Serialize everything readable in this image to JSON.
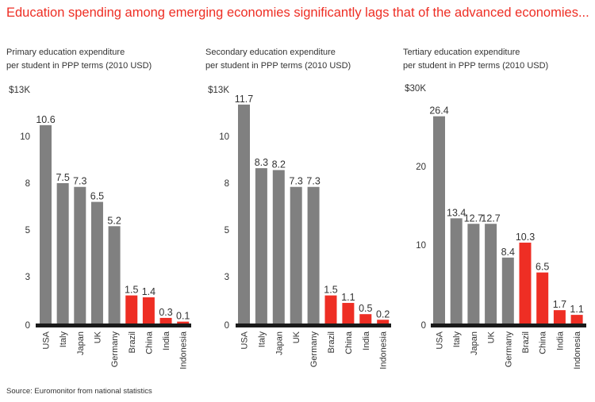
{
  "title": "Education spending among emerging economies significantly lags that of the advanced economies...",
  "source": "Source: Euromonitor from national statistics",
  "colors": {
    "advanced": "#808080",
    "emerging": "#ee2e24",
    "baseline": "#1a1a1a"
  },
  "chart_data": [
    {
      "type": "bar",
      "title_lines": [
        "Primary education expenditure",
        "per student in PPP terms (2010 USD)"
      ],
      "xlabel": "",
      "ylabel": "",
      "categories": [
        "USA",
        "Italy",
        "Japan",
        "UK",
        "Germany",
        "Brazil",
        "China",
        "India",
        "Indonesia"
      ],
      "values": [
        10.6,
        7.5,
        7.3,
        6.5,
        5.2,
        1.5,
        1.4,
        0.3,
        0.1
      ],
      "groups": [
        "advanced",
        "advanced",
        "advanced",
        "advanced",
        "advanced",
        "emerging",
        "emerging",
        "emerging",
        "emerging"
      ],
      "ylim": [
        0,
        12.5
      ],
      "yticks": [
        0,
        2.5,
        5,
        7.5,
        10,
        12.5
      ],
      "ytick_labels": [
        "0",
        "3",
        "5",
        "8",
        "10",
        "$13K"
      ],
      "units": "thousand USD",
      "grid": false
    },
    {
      "type": "bar",
      "title_lines": [
        "Secondary education expenditure",
        "per student in PPP terms (2010 USD)"
      ],
      "xlabel": "",
      "ylabel": "",
      "categories": [
        "USA",
        "Italy",
        "Japan",
        "UK",
        "Germany",
        "Brazil",
        "China",
        "India",
        "Indonesia"
      ],
      "values": [
        11.7,
        8.3,
        8.2,
        7.3,
        7.3,
        1.5,
        1.1,
        0.5,
        0.2
      ],
      "groups": [
        "advanced",
        "advanced",
        "advanced",
        "advanced",
        "advanced",
        "emerging",
        "emerging",
        "emerging",
        "emerging"
      ],
      "ylim": [
        0,
        12.5
      ],
      "yticks": [
        0,
        2.5,
        5,
        7.5,
        10,
        12.5
      ],
      "ytick_labels": [
        "0",
        "3",
        "5",
        "8",
        "10",
        "$13K"
      ],
      "units": "thousand USD",
      "grid": false
    },
    {
      "type": "bar",
      "title_lines": [
        "Tertiary education expenditure",
        "per student in PPP terms (2010 USD)"
      ],
      "xlabel": "",
      "ylabel": "",
      "categories": [
        "USA",
        "Italy",
        "Japan",
        "UK",
        "Germany",
        "Brazil",
        "China",
        "India",
        "Indonesia"
      ],
      "values": [
        26.4,
        13.4,
        12.7,
        12.7,
        8.4,
        10.3,
        6.5,
        1.7,
        1.1
      ],
      "groups": [
        "advanced",
        "advanced",
        "advanced",
        "advanced",
        "advanced",
        "emerging",
        "emerging",
        "emerging",
        "emerging"
      ],
      "ylim": [
        0,
        30
      ],
      "yticks": [
        0,
        10,
        20,
        30
      ],
      "ytick_labels": [
        "0",
        "10",
        "20",
        "$30K"
      ],
      "units": "thousand USD",
      "grid": false
    }
  ]
}
